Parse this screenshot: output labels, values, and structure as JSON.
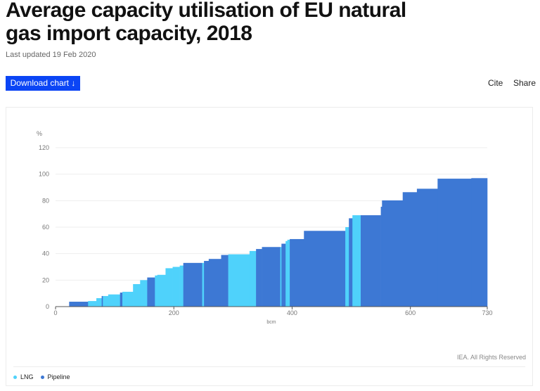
{
  "header": {
    "title": "Average capacity utilisation of EU natural gas import capacity, 2018",
    "last_updated": "Last updated 19 Feb 2020"
  },
  "toolbar": {
    "download_label": "Download chart ↓",
    "cite_label": "Cite",
    "share_label": "Share"
  },
  "footer": {
    "credit": "IEA. All Rights Reserved"
  },
  "colors": {
    "LNG": "#4fd2fb",
    "Pipeline": "#3d78d4",
    "button": "#0b45f5"
  },
  "chart_data": {
    "type": "bar",
    "subtype": "variable-width step (Marimekko-style)",
    "ylabel": "%",
    "xlabel": "bcm",
    "xlim": [
      0,
      730
    ],
    "ylim": [
      0,
      120
    ],
    "xticks": [
      0,
      200,
      400,
      600,
      730
    ],
    "yticks": [
      0,
      20,
      40,
      60,
      80,
      100,
      120
    ],
    "grid": true,
    "legend_placement": "bottom-left",
    "legend": [
      "LNG",
      "Pipeline"
    ],
    "segments": [
      {
        "x0": 23,
        "x1": 55,
        "value": 3.7,
        "series": "Pipeline"
      },
      {
        "x0": 55,
        "x1": 69,
        "value": 4.2,
        "series": "LNG"
      },
      {
        "x0": 69,
        "x1": 78,
        "value": 6.4,
        "series": "LNG"
      },
      {
        "x0": 78,
        "x1": 80,
        "value": 8,
        "series": "Pipeline"
      },
      {
        "x0": 80,
        "x1": 89,
        "value": 8,
        "series": "LNG"
      },
      {
        "x0": 89,
        "x1": 109,
        "value": 9.2,
        "series": "LNG"
      },
      {
        "x0": 109,
        "x1": 113,
        "value": 10.6,
        "series": "Pipeline"
      },
      {
        "x0": 113,
        "x1": 131,
        "value": 11.2,
        "series": "LNG"
      },
      {
        "x0": 131,
        "x1": 143,
        "value": 17,
        "series": "LNG"
      },
      {
        "x0": 143,
        "x1": 155,
        "value": 20,
        "series": "LNG"
      },
      {
        "x0": 155,
        "x1": 168,
        "value": 22,
        "series": "Pipeline"
      },
      {
        "x0": 168,
        "x1": 172,
        "value": 23.5,
        "series": "LNG"
      },
      {
        "x0": 172,
        "x1": 186,
        "value": 24,
        "series": "LNG"
      },
      {
        "x0": 186,
        "x1": 198,
        "value": 29,
        "series": "LNG"
      },
      {
        "x0": 198,
        "x1": 210,
        "value": 30,
        "series": "LNG"
      },
      {
        "x0": 210,
        "x1": 216,
        "value": 31,
        "series": "LNG"
      },
      {
        "x0": 216,
        "x1": 248,
        "value": 33,
        "series": "Pipeline"
      },
      {
        "x0": 248,
        "x1": 251,
        "value": 33,
        "series": "LNG"
      },
      {
        "x0": 251,
        "x1": 259,
        "value": 34.5,
        "series": "Pipeline"
      },
      {
        "x0": 259,
        "x1": 280,
        "value": 36,
        "series": "Pipeline"
      },
      {
        "x0": 280,
        "x1": 292,
        "value": 39,
        "series": "Pipeline"
      },
      {
        "x0": 292,
        "x1": 328,
        "value": 39.5,
        "series": "LNG"
      },
      {
        "x0": 328,
        "x1": 339,
        "value": 42,
        "series": "LNG"
      },
      {
        "x0": 339,
        "x1": 349,
        "value": 43.5,
        "series": "Pipeline"
      },
      {
        "x0": 349,
        "x1": 380,
        "value": 45,
        "series": "Pipeline"
      },
      {
        "x0": 380,
        "x1": 382,
        "value": 45,
        "series": "LNG"
      },
      {
        "x0": 382,
        "x1": 389,
        "value": 47.5,
        "series": "Pipeline"
      },
      {
        "x0": 389,
        "x1": 392,
        "value": 49.5,
        "series": "LNG"
      },
      {
        "x0": 392,
        "x1": 396,
        "value": 50.5,
        "series": "LNG"
      },
      {
        "x0": 396,
        "x1": 420,
        "value": 51,
        "series": "Pipeline"
      },
      {
        "x0": 420,
        "x1": 490,
        "value": 57.2,
        "series": "Pipeline"
      },
      {
        "x0": 490,
        "x1": 496,
        "value": 60,
        "series": "LNG"
      },
      {
        "x0": 496,
        "x1": 502,
        "value": 66.7,
        "series": "Pipeline"
      },
      {
        "x0": 502,
        "x1": 516,
        "value": 69,
        "series": "LNG"
      },
      {
        "x0": 516,
        "x1": 550,
        "value": 69,
        "series": "Pipeline"
      },
      {
        "x0": 550,
        "x1": 552,
        "value": 75.4,
        "series": "Pipeline"
      },
      {
        "x0": 552,
        "x1": 587,
        "value": 80.2,
        "series": "Pipeline"
      },
      {
        "x0": 587,
        "x1": 611,
        "value": 86.4,
        "series": "Pipeline"
      },
      {
        "x0": 611,
        "x1": 646,
        "value": 89,
        "series": "Pipeline"
      },
      {
        "x0": 646,
        "x1": 703,
        "value": 96.6,
        "series": "Pipeline"
      },
      {
        "x0": 703,
        "x1": 730,
        "value": 97,
        "series": "Pipeline"
      }
    ]
  }
}
